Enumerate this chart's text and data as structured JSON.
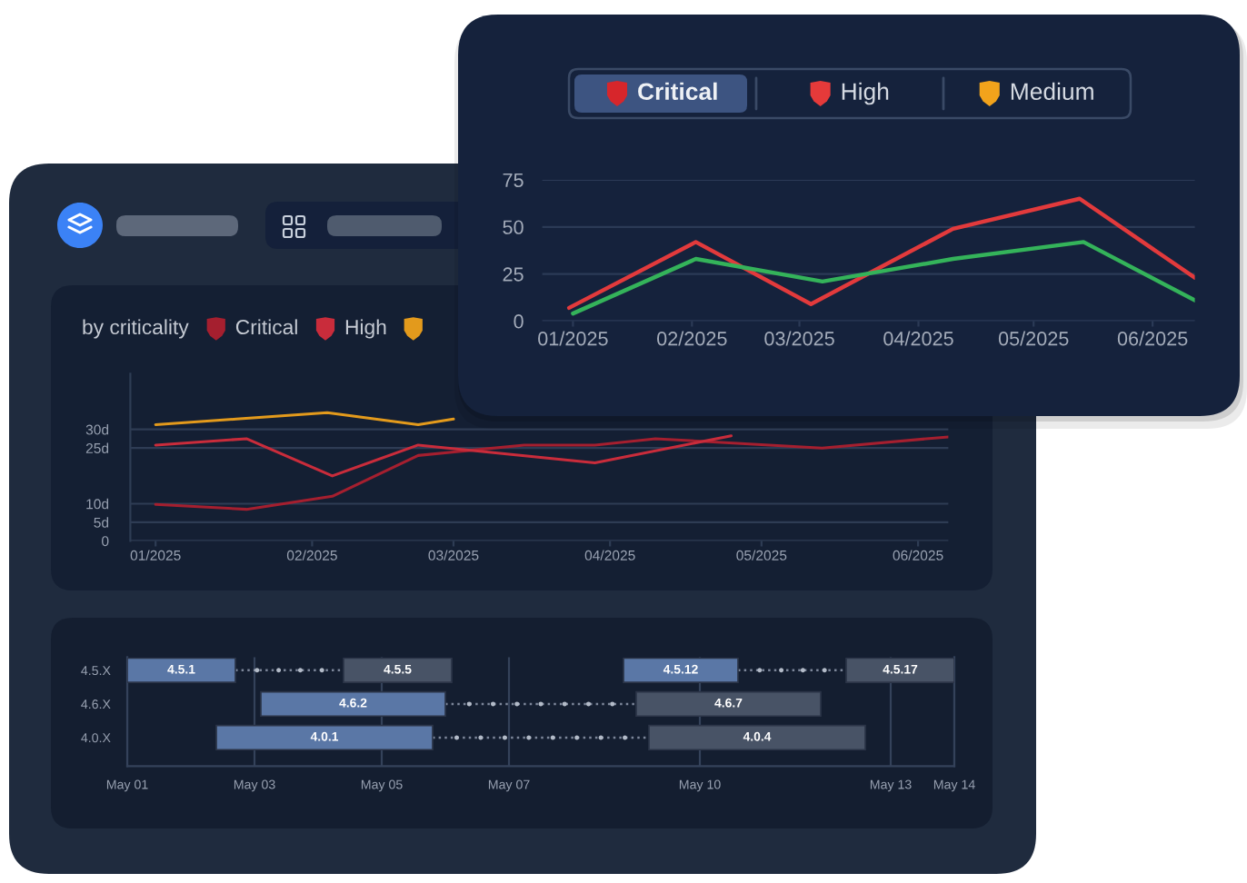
{
  "chart_data": [
    {
      "type": "line",
      "annotations": [
        "Critical",
        "High",
        "Medium"
      ],
      "series": [
        {
          "color": "#e23a3c",
          "x": [
            "2024-12-31",
            "2025-02-02",
            "2025-03-04",
            "2025-04-10",
            "2025-05-13",
            "2025-06-12"
          ],
          "values": [
            7,
            42,
            9,
            49,
            65,
            23
          ]
        },
        {
          "color": "#34b35a",
          "x": [
            "2025-01-01",
            "2025-02-02",
            "2025-03-07",
            "2025-04-10",
            "2025-05-14",
            "2025-06-12"
          ],
          "values": [
            4,
            33,
            21,
            33,
            42,
            11
          ]
        }
      ],
      "xlim": [
        "2024-12-24",
        "2025-06-12"
      ],
      "xticks": [
        {
          "value": "2025-01-01",
          "label": "01/2025"
        },
        {
          "value": "2025-02-01",
          "label": "02/2025"
        },
        {
          "value": "2025-03-01",
          "label": "03/2025"
        },
        {
          "value": "2025-04-01",
          "label": "04/2025"
        },
        {
          "value": "2025-05-01",
          "label": "05/2025"
        },
        {
          "value": "2025-06-01",
          "label": "06/2025"
        }
      ],
      "ylim": [
        0,
        75
      ],
      "yticks": [
        0,
        25,
        50,
        75
      ],
      "grid": "y"
    },
    {
      "type": "line",
      "legend_title": "by criticality",
      "legend": "top left",
      "series": [
        {
          "name": "Critical",
          "color": "#a51f2f",
          "x": [
            "2025-01-01",
            "2025-01-19",
            "2025-02-05",
            "2025-02-22",
            "2025-03-15",
            "2025-03-29",
            "2025-04-10",
            "2025-05-13",
            "2025-06-07"
          ],
          "values": [
            9.8,
            8.5,
            12,
            23,
            25.8,
            25.8,
            27.5,
            25,
            28
          ]
        },
        {
          "name": "High",
          "color": "#c92c3b",
          "x": [
            "2025-01-01",
            "2025-01-19",
            "2025-02-05",
            "2025-02-22",
            "2025-03-29",
            "2025-04-25"
          ],
          "values": [
            25.8,
            27.5,
            17.5,
            25.8,
            21,
            28.3
          ]
        },
        {
          "color": "#e39a1c",
          "x": [
            "2025-01-01",
            "2025-01-17",
            "2025-02-04",
            "2025-02-22",
            "2025-03-01"
          ],
          "values": [
            31.3,
            32.8,
            34.5,
            31.3,
            32.8
          ]
        }
      ],
      "xlim": [
        "2024-12-27",
        "2025-06-07"
      ],
      "xticks": [
        {
          "value": "2025-01-01",
          "label": "01/2025"
        },
        {
          "value": "2025-02-01",
          "label": "02/2025"
        },
        {
          "value": "2025-03-01",
          "label": "03/2025"
        },
        {
          "value": "2025-04-01",
          "label": "04/2025"
        },
        {
          "value": "2025-05-01",
          "label": "05/2025"
        },
        {
          "value": "2025-06-01",
          "label": "06/2025"
        }
      ],
      "ylim": [
        0,
        45
      ],
      "yticks": [
        0,
        {
          "value": 5,
          "label": "5d"
        },
        {
          "value": 10,
          "label": "10d"
        },
        {
          "value": 25,
          "label": "25d"
        },
        {
          "value": 30,
          "label": "30d"
        }
      ],
      "grid": "y"
    },
    {
      "type": "bar",
      "orientation": "horizontal",
      "categories": [
        "4.5.X",
        "4.6.X",
        "4.0.X"
      ],
      "series": [
        {
          "name": "4.5.1",
          "color": "#5a77a6",
          "base": [
            20209.0,
            null,
            null
          ],
          "values": [
            1.7,
            null,
            null
          ]
        },
        {
          "name": "4.5.5",
          "color": "#485366",
          "base": [
            20212.4,
            null,
            null
          ],
          "values": [
            1.7,
            null,
            null
          ]
        },
        {
          "name": "4.6.2",
          "color": "#5a77a6",
          "base": [
            null,
            20211.1,
            null
          ],
          "values": [
            null,
            2.9,
            null
          ]
        },
        {
          "name": "4.6.7",
          "color": "#485366",
          "base": [
            null,
            20217.0,
            null
          ],
          "values": [
            null,
            2.9,
            null
          ]
        },
        {
          "name": "4.0.1",
          "color": "#5a77a6",
          "base": [
            null,
            null,
            20210.4
          ],
          "values": [
            null,
            null,
            3.4
          ]
        },
        {
          "name": "4.0.4",
          "color": "#485366",
          "base": [
            null,
            null,
            20217.2
          ],
          "values": [
            null,
            null,
            3.4
          ]
        },
        {
          "name": "4.5.12",
          "color": "#5a77a6",
          "base": [
            20216.8,
            null,
            null
          ],
          "values": [
            1.8,
            null,
            null
          ]
        },
        {
          "name": "4.5.17",
          "color": "#485366",
          "base": [
            20220.3,
            null,
            null
          ],
          "values": [
            1.7,
            null,
            null
          ]
        }
      ],
      "xlim": [
        "2025-05-01",
        "2025-05-14"
      ],
      "xticks": [
        {
          "value": "2025-05-01",
          "label": "May 01"
        },
        {
          "value": "2025-05-03",
          "label": "May 03"
        },
        {
          "value": "2025-05-05",
          "label": "May 05"
        },
        {
          "value": "2025-05-07",
          "label": "May 07"
        },
        {
          "value": "2025-05-10",
          "label": "May 10"
        },
        {
          "value": "2025-05-13",
          "label": "May 13"
        },
        {
          "value": "2025-05-14",
          "label": "May 14"
        }
      ],
      "grid": "x"
    }
  ]
}
